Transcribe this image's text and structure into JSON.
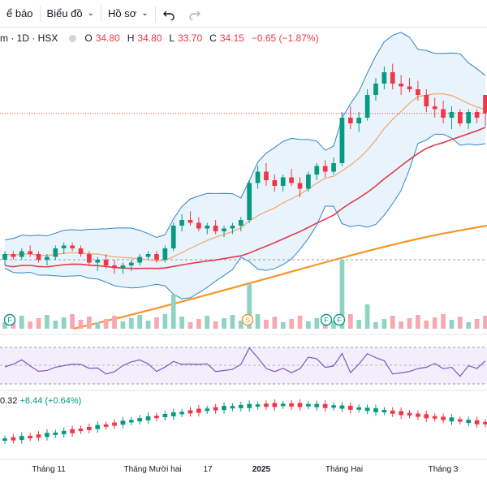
{
  "toolbar": {
    "alerts_label": "ể báo",
    "chart_label": "Biểu đồ",
    "profile_label": "Hồ sơ",
    "undo_icon": "undo-icon",
    "redo_icon": "redo-icon"
  },
  "legend": {
    "symbol": "m · 1D · HSX",
    "open_key": "O",
    "open": "34.80",
    "high_key": "H",
    "high": "34.80",
    "low_key": "L",
    "low": "33.70",
    "close_key": "C",
    "close": "34.15",
    "change": "−0.65 (−1.87%)"
  },
  "oscillator": {
    "value": "0.32",
    "change": "+8.44 (+0.64%)"
  },
  "markers": [
    "F",
    "S",
    "F",
    "F"
  ],
  "time_axis": [
    "Tháng 11",
    "Tháng Mười hai",
    "17",
    "2025",
    "Tháng Hai",
    "Tháng 3"
  ],
  "colors": {
    "up": "#089981",
    "down": "#f23645",
    "bb_fill": "#e3f0fb",
    "bb_line": "#2e86c8",
    "ma20": "#f2a56a",
    "ma50": "#e03a48",
    "ma200": "#f5962b",
    "rsi": "#7e57c2"
  },
  "chart_data": {
    "type": "candlestick",
    "series": [
      {
        "type": "candlestick",
        "values": [
          [
            29.0,
            29.3,
            28.8,
            29.2
          ],
          [
            29.2,
            29.3,
            29.0,
            29.1
          ],
          [
            29.1,
            29.4,
            29.0,
            29.3
          ],
          [
            29.3,
            29.5,
            29.1,
            29.2
          ],
          [
            29.2,
            29.3,
            28.9,
            29.0
          ],
          [
            29.0,
            29.2,
            28.8,
            29.1
          ],
          [
            29.1,
            29.5,
            29.0,
            29.4
          ],
          [
            29.4,
            29.6,
            29.2,
            29.5
          ],
          [
            29.5,
            29.6,
            29.3,
            29.4
          ],
          [
            29.4,
            29.5,
            29.1,
            29.2
          ],
          [
            29.2,
            29.3,
            28.8,
            28.9
          ],
          [
            28.9,
            29.1,
            28.6,
            29.0
          ],
          [
            29.0,
            29.2,
            28.7,
            28.8
          ],
          [
            28.8,
            29.0,
            28.5,
            28.7
          ],
          [
            28.7,
            28.9,
            28.5,
            28.8
          ],
          [
            28.8,
            29.0,
            28.6,
            28.9
          ],
          [
            28.9,
            29.2,
            28.8,
            29.1
          ],
          [
            29.1,
            29.3,
            29.0,
            29.2
          ],
          [
            29.2,
            29.3,
            28.9,
            29.0
          ],
          [
            29.0,
            29.5,
            28.9,
            29.4
          ],
          [
            29.4,
            30.3,
            29.3,
            30.2
          ],
          [
            30.2,
            30.6,
            30.0,
            30.4
          ],
          [
            30.4,
            30.7,
            30.2,
            30.3
          ],
          [
            30.3,
            30.5,
            30.0,
            30.1
          ],
          [
            30.1,
            30.3,
            29.9,
            30.2
          ],
          [
            30.2,
            30.4,
            29.9,
            30.0
          ],
          [
            30.0,
            30.2,
            29.8,
            30.1
          ],
          [
            30.1,
            30.3,
            29.9,
            30.2
          ],
          [
            30.2,
            30.5,
            30.0,
            30.4
          ],
          [
            30.4,
            31.8,
            30.3,
            31.7
          ],
          [
            31.7,
            32.3,
            31.5,
            32.1
          ],
          [
            32.1,
            32.4,
            31.6,
            31.8
          ],
          [
            31.8,
            32.0,
            31.4,
            31.6
          ],
          [
            31.6,
            32.0,
            31.4,
            31.9
          ],
          [
            31.9,
            32.2,
            31.6,
            31.7
          ],
          [
            31.7,
            31.9,
            31.2,
            31.5
          ],
          [
            31.5,
            32.1,
            31.4,
            32.0
          ],
          [
            32.0,
            32.4,
            31.8,
            32.3
          ],
          [
            32.3,
            32.5,
            31.9,
            32.1
          ],
          [
            32.1,
            32.6,
            32.0,
            32.4
          ],
          [
            32.4,
            34.2,
            32.3,
            34.0
          ],
          [
            34.0,
            34.4,
            33.6,
            33.8
          ],
          [
            33.8,
            34.2,
            33.5,
            34.0
          ],
          [
            34.0,
            35.0,
            33.9,
            34.8
          ],
          [
            34.8,
            35.4,
            34.6,
            35.2
          ],
          [
            35.2,
            35.8,
            35.0,
            35.6
          ],
          [
            35.6,
            35.9,
            35.0,
            35.2
          ],
          [
            35.2,
            35.5,
            34.8,
            35.1
          ],
          [
            35.1,
            35.4,
            34.9,
            35.0
          ],
          [
            35.0,
            35.3,
            34.6,
            34.8
          ],
          [
            34.8,
            35.0,
            34.2,
            34.4
          ],
          [
            34.4,
            34.7,
            34.0,
            34.3
          ],
          [
            34.3,
            34.6,
            33.8,
            34.0
          ],
          [
            34.0,
            34.4,
            33.6,
            34.2
          ],
          [
            34.2,
            34.3,
            33.7,
            33.8
          ],
          [
            33.8,
            34.3,
            33.6,
            34.2
          ],
          [
            34.2,
            34.3,
            33.8,
            34.0
          ],
          [
            34.8,
            34.8,
            33.7,
            34.15
          ]
        ]
      },
      {
        "name": "MA20",
        "type": "line"
      },
      {
        "name": "MA50",
        "type": "line"
      },
      {
        "name": "MA200",
        "type": "line"
      },
      {
        "name": "Bollinger Bands",
        "type": "band"
      },
      {
        "name": "Volume",
        "type": "bar"
      },
      {
        "name": "RSI",
        "type": "line"
      }
    ],
    "ylim": [
      28.0,
      36.0
    ],
    "grid": false
  }
}
